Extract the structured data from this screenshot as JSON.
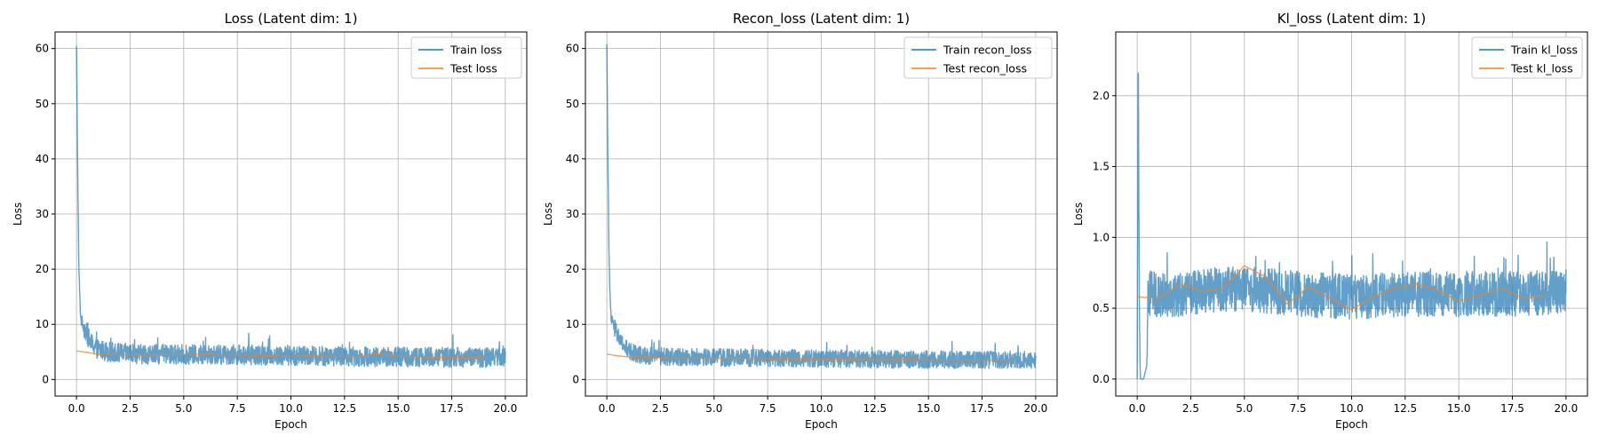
{
  "figure": {
    "background": "#ffffff"
  },
  "colors": {
    "train": "#1f77b4",
    "test": "#ff7f0e",
    "grid": "#b0b0b0"
  },
  "chart_data": [
    {
      "type": "line",
      "title": "Loss (Latent dim: 1)",
      "xlabel": "Epoch",
      "ylabel": "Loss",
      "xlim": [
        -1,
        21
      ],
      "ylim": [
        -3,
        63
      ],
      "xticks": [
        0.0,
        2.5,
        5.0,
        7.5,
        10.0,
        12.5,
        15.0,
        17.5,
        20.0
      ],
      "yticks": [
        0,
        10,
        20,
        30,
        40,
        50,
        60
      ],
      "grid": true,
      "legend": "top-right",
      "series": [
        {
          "name": "Train loss",
          "role": "train",
          "noisy": true,
          "amplitude": 1.8,
          "x": [
            0,
            0.05,
            0.1,
            0.15,
            0.2,
            0.3,
            0.4,
            0.5,
            0.7,
            1,
            1.5,
            2,
            3,
            5,
            7.5,
            10,
            12.5,
            15,
            17.5,
            20
          ],
          "y": [
            60,
            40,
            22,
            15,
            11,
            10,
            9,
            8,
            6.5,
            5.5,
            5,
            4.8,
            4.6,
            4.5,
            4.5,
            4.3,
            4.2,
            4.1,
            4.0,
            4.0
          ]
        },
        {
          "name": "Test loss",
          "role": "test",
          "x": [
            0,
            0.5,
            1,
            2,
            3,
            4,
            5,
            6,
            7,
            8,
            9,
            10,
            11,
            12,
            13,
            14,
            15,
            16,
            17,
            18,
            19
          ],
          "y": [
            5.2,
            4.9,
            4.6,
            4.5,
            4.4,
            4.5,
            4.5,
            4.6,
            4.5,
            4.4,
            4.3,
            4.2,
            4.3,
            4.2,
            4.1,
            4.7,
            4.2,
            4.1,
            4.0,
            4.0,
            4.0
          ]
        }
      ]
    },
    {
      "type": "line",
      "title": "Recon_loss (Latent dim: 1)",
      "xlabel": "Epoch",
      "ylabel": "Loss",
      "xlim": [
        -1,
        21
      ],
      "ylim": [
        -3,
        63
      ],
      "xticks": [
        0.0,
        2.5,
        5.0,
        7.5,
        10.0,
        12.5,
        15.0,
        17.5,
        20.0
      ],
      "yticks": [
        0,
        10,
        20,
        30,
        40,
        50,
        60
      ],
      "grid": true,
      "legend": "top-right",
      "series": [
        {
          "name": "Train recon_loss",
          "role": "train",
          "noisy": true,
          "amplitude": 1.6,
          "x": [
            0,
            0.05,
            0.1,
            0.15,
            0.2,
            0.3,
            0.4,
            0.5,
            0.7,
            1,
            1.5,
            2,
            3,
            5,
            7.5,
            10,
            12.5,
            15,
            17.5,
            20
          ],
          "y": [
            60,
            40,
            22,
            15,
            11,
            10,
            9,
            8,
            6.5,
            5.2,
            4.5,
            4.3,
            4.1,
            4.0,
            3.9,
            3.8,
            3.7,
            3.6,
            3.6,
            3.6
          ]
        },
        {
          "name": "Test recon_loss",
          "role": "test",
          "x": [
            0,
            0.5,
            1,
            2,
            3,
            4,
            5,
            6,
            7,
            8,
            9,
            10,
            11,
            12,
            13,
            14,
            15,
            16,
            17,
            18,
            19
          ],
          "y": [
            4.6,
            4.3,
            4.1,
            4.0,
            3.9,
            3.9,
            3.8,
            3.9,
            3.8,
            3.7,
            3.7,
            3.6,
            3.7,
            3.6,
            3.6,
            3.7,
            3.5,
            3.5,
            3.5,
            3.5,
            3.5
          ]
        }
      ]
    },
    {
      "type": "line",
      "title": "Kl_loss (Latent dim: 1)",
      "xlabel": "Epoch",
      "ylabel": "Loss",
      "xlim": [
        -1,
        21
      ],
      "ylim": [
        -0.12,
        2.45
      ],
      "xticks": [
        0.0,
        2.5,
        5.0,
        7.5,
        10.0,
        12.5,
        15.0,
        17.5,
        20.0
      ],
      "yticks": [
        0.0,
        0.5,
        1.0,
        1.5,
        2.0
      ],
      "grid": true,
      "legend": "top-right",
      "series": [
        {
          "name": "Train kl_loss",
          "role": "train",
          "noisy": true,
          "amplitude": 0.16,
          "x": [
            0,
            0.05,
            0.1,
            0.15,
            0.2,
            0.3,
            0.45,
            0.5,
            1,
            2,
            3,
            5,
            7.5,
            10,
            12.5,
            15,
            17.5,
            20
          ],
          "y": [
            0.0,
            2.32,
            0.5,
            0.0,
            0.0,
            0.0,
            0.1,
            0.6,
            0.6,
            0.6,
            0.62,
            0.64,
            0.6,
            0.58,
            0.6,
            0.6,
            0.6,
            0.62
          ]
        },
        {
          "name": "Test kl_loss",
          "role": "test",
          "x": [
            0,
            1,
            2,
            3,
            4,
            5,
            6,
            7,
            8,
            9,
            10,
            11,
            12,
            13,
            14,
            15,
            16,
            17,
            18,
            19
          ],
          "y": [
            0.58,
            0.57,
            0.67,
            0.62,
            0.64,
            0.8,
            0.72,
            0.53,
            0.65,
            0.57,
            0.49,
            0.58,
            0.64,
            0.67,
            0.63,
            0.55,
            0.59,
            0.64,
            0.57,
            0.59
          ]
        }
      ]
    }
  ]
}
